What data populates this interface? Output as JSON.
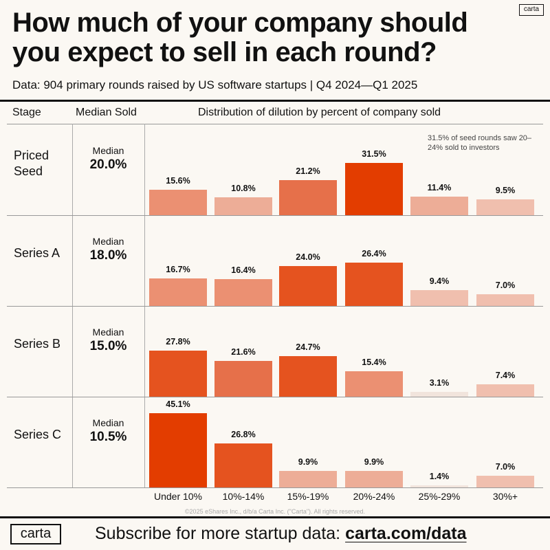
{
  "brand": "carta",
  "title": "How much of your company should you expect to sell in each round?",
  "subtitle": "Data: 904 primary rounds raised by US software startups | Q4 2024—Q1 2025",
  "headers": {
    "stage": "Stage",
    "median": "Median Sold",
    "distribution": "Distribution of dilution by percent of company sold"
  },
  "annotation": "31.5% of seed rounds saw 20–24% sold to investors",
  "footer": {
    "copyright": "©2025 eShares Inc., d/b/a Carta Inc. (\"Carta\"). All rights reserved.",
    "subscribe_text": "Subscribe for more startup data: ",
    "subscribe_link": "carta.com/data"
  },
  "colors": {
    "highest": "#e33d00",
    "high": "#e5531f",
    "mid": "#e6704a",
    "midlow": "#eb9072",
    "low": "#edad97",
    "lower": "#f0bfae",
    "lowest": "#f1e4dc"
  },
  "chart_data": {
    "type": "bar",
    "categories": [
      "Under 10%",
      "10%-14%",
      "15%-19%",
      "20%-24%",
      "25%-29%",
      "30%+"
    ],
    "unit": "%",
    "rows": [
      {
        "stage": "Priced Seed",
        "median_label": "Median",
        "median": "20.0%",
        "values": [
          15.6,
          10.8,
          21.2,
          31.5,
          11.4,
          9.5
        ]
      },
      {
        "stage": "Series A",
        "median_label": "Median",
        "median": "18.0%",
        "values": [
          16.7,
          16.4,
          24.0,
          26.4,
          9.4,
          7.0
        ]
      },
      {
        "stage": "Series B",
        "median_label": "Median",
        "median": "15.0%",
        "values": [
          27.8,
          21.6,
          24.7,
          15.4,
          3.1,
          7.4
        ]
      },
      {
        "stage": "Series C",
        "median_label": "Median",
        "median": "10.5%",
        "values": [
          45.1,
          26.8,
          9.9,
          9.9,
          1.4,
          7.0
        ]
      }
    ]
  }
}
